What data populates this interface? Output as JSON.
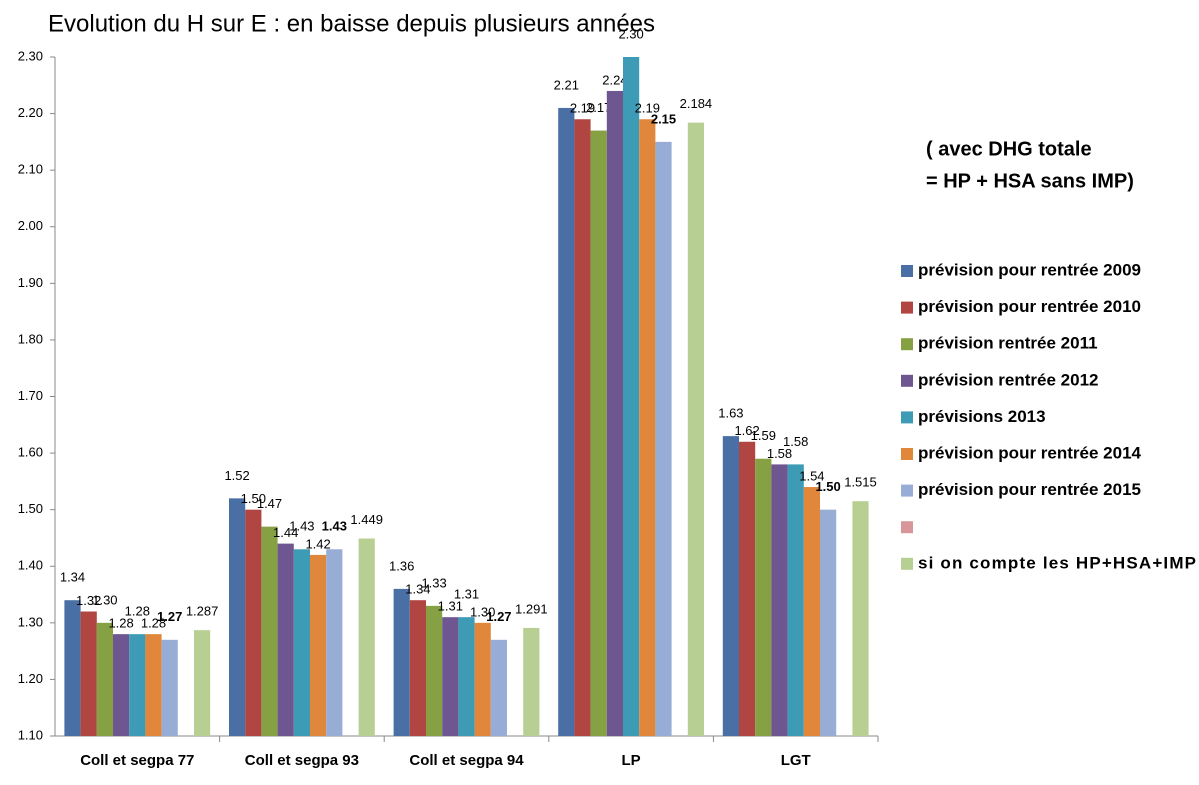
{
  "chart_data": {
    "type": "bar",
    "title": "Evolution du H sur E : en baisse depuis plusieurs années",
    "annotation": [
      "( avec DHG totale",
      "= HP + HSA sans IMP)"
    ],
    "categories": [
      "Coll et segpa 77",
      "Coll et segpa 93",
      "Coll et segpa 94",
      "LP",
      "LGT"
    ],
    "series": [
      {
        "name": "prévision pour rentrée 2009",
        "color": "#4a6fa5",
        "values": [
          1.34,
          1.52,
          1.36,
          2.21,
          1.63
        ],
        "value_labels": [
          "1.34",
          "1.52",
          "1.36",
          "2.21",
          "1.63"
        ]
      },
      {
        "name": "prévision pour rentrée 2010",
        "color": "#b04542",
        "values": [
          1.32,
          1.5,
          1.34,
          2.19,
          1.62
        ],
        "value_labels": [
          "1.32",
          "1.50",
          "1.34",
          "2.19",
          "1.62"
        ]
      },
      {
        "name": "prévision rentrée 2011",
        "color": "#86a044",
        "values": [
          1.3,
          1.47,
          1.33,
          2.17,
          1.59
        ],
        "value_labels": [
          "1.30",
          "1.47",
          "1.33",
          "2.17",
          "1.59"
        ]
      },
      {
        "name": "prévision rentrée 2012",
        "color": "#6e5690",
        "values": [
          1.28,
          1.44,
          1.31,
          2.24,
          1.58
        ],
        "value_labels": [
          "1.28",
          "1.44",
          "1.31",
          "2.24",
          "1.58"
        ]
      },
      {
        "name": "prévisions 2013",
        "color": "#3d9bb5",
        "values": [
          1.28,
          1.43,
          1.31,
          2.3,
          1.58
        ],
        "value_labels": [
          "1.28",
          "1.43",
          "1.31",
          "2.30",
          "1.58"
        ]
      },
      {
        "name": "prévision pour rentrée 2014",
        "color": "#e0873b",
        "values": [
          1.28,
          1.42,
          1.3,
          2.19,
          1.54
        ],
        "value_labels": [
          "1.28",
          "1.42",
          "1.30",
          "2.19",
          "1.54"
        ]
      },
      {
        "name": "prévision pour rentrée 2015",
        "color": "#98add6",
        "label_color": "#e0141a",
        "values": [
          1.27,
          1.43,
          1.27,
          2.15,
          1.5
        ],
        "value_labels": [
          "1.27",
          "1.43",
          "1.27",
          "2.15",
          "1.50"
        ]
      },
      {
        "name": null,
        "color": "#d9969a",
        "values": [
          null,
          null,
          null,
          null,
          null
        ]
      },
      {
        "name": "si on compte les HP+HSA+IMP",
        "color": "#b7cf92",
        "label_color": "#e040c0",
        "values": [
          1.287,
          1.449,
          1.291,
          2.184,
          1.515
        ]
      }
    ],
    "ylim": [
      1.1,
      2.3
    ],
    "yticks": [
      {
        "value": 1.1,
        "label": "1.10"
      },
      {
        "value": 1.2,
        "label": "1.20"
      },
      {
        "value": 1.3,
        "label": "1.30"
      },
      {
        "value": 1.4,
        "label": "1.40"
      },
      {
        "value": 1.5,
        "label": "1.50"
      },
      {
        "value": 1.6,
        "label": "1.60"
      },
      {
        "value": 1.7,
        "label": "1.70"
      },
      {
        "value": 1.8,
        "label": "1.80"
      },
      {
        "value": 1.9,
        "label": "1.90"
      },
      {
        "value": 2.0,
        "label": "2.00"
      },
      {
        "value": 2.1,
        "label": "2.10"
      },
      {
        "value": 2.2,
        "label": "2.20"
      },
      {
        "value": 2.3,
        "label": "2.30"
      }
    ],
    "grid": false,
    "legend": "right"
  }
}
